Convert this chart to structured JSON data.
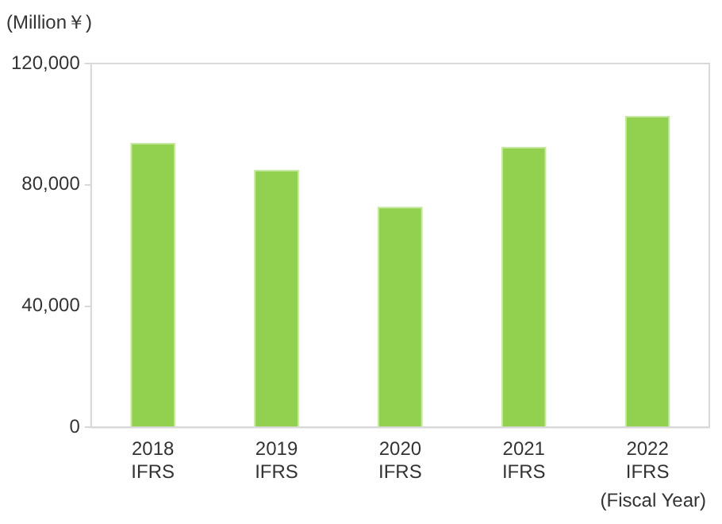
{
  "chart_data": {
    "type": "bar",
    "ylabel": "(Million￥)",
    "xlabel": "(Fiscal Year)",
    "categories": [
      "2018\nIFRS",
      "2019\nIFRS",
      "2020\nIFRS",
      "2021\nIFRS",
      "2022\nIFRS"
    ],
    "values": [
      93900,
      85000,
      72800,
      92500,
      102700
    ],
    "color": "#92d050",
    "ylim": [
      0,
      120000
    ],
    "yticks": [
      {
        "value": 0,
        "label": "0"
      },
      {
        "value": 40000,
        "label": "40,000"
      },
      {
        "value": 80000,
        "label": "80,000"
      },
      {
        "value": 120000,
        "label": "120,000"
      }
    ],
    "grid": false,
    "legend": false
  }
}
